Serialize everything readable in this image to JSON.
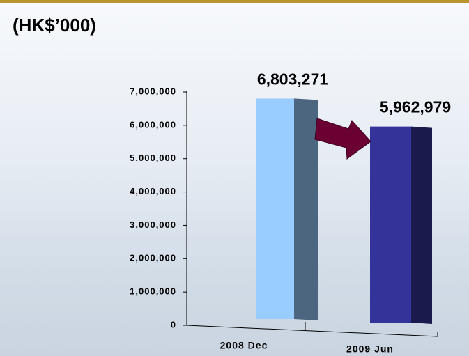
{
  "chart_data": {
    "type": "bar",
    "title": "(HK$’000)",
    "categories": [
      "2008 Dec",
      "2009 Jun"
    ],
    "values": [
      6803271,
      5962979
    ],
    "value_labels": [
      "6,803,271",
      "5,962,979"
    ],
    "colors": [
      "#99ccff",
      "#333399"
    ],
    "ylim": [
      0,
      7000000
    ],
    "yticks": [
      0,
      {
        "value": 1000000,
        "label": "1,000,000"
      },
      {
        "value": 2000000,
        "label": "2,000,000"
      },
      {
        "value": 3000000,
        "label": "3,000,000"
      },
      {
        "value": 4000000,
        "label": "4,000,000"
      },
      {
        "value": 5000000,
        "label": "5,000,000"
      },
      {
        "value": 6000000,
        "label": "6,000,000"
      },
      {
        "value": 7000000,
        "label": "7,000,000"
      }
    ]
  }
}
